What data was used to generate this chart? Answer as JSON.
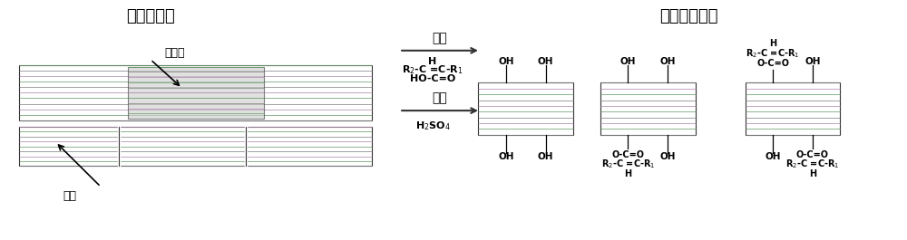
{
  "bg_color": "#ffffff",
  "title_left": "微晶纤维素",
  "title_right": "纤维素纳米晶",
  "arrow1_label_top": "酸解",
  "arrow1_label_bot": "酯化",
  "label_feiJing": "非晶区",
  "label_jing": "晶区",
  "text_color": "#000000",
  "line_gray": "#888888",
  "line_purple": "#b090b0",
  "line_green": "#70a070"
}
